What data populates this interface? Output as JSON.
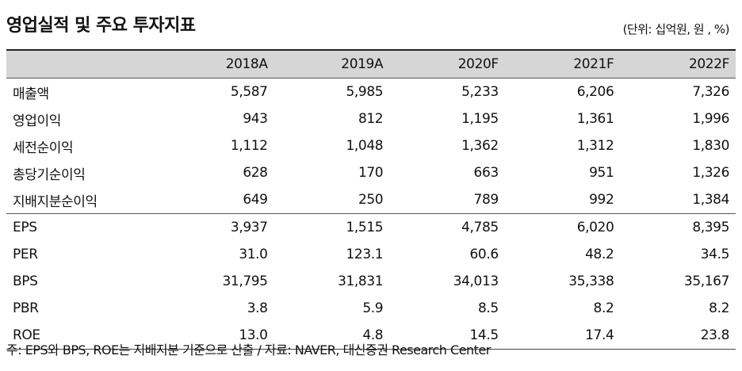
{
  "title": "영업실적 및 주요 투자지표",
  "unit": "(단위: 십억원, 원 , %)",
  "columns": [
    "",
    "2018A",
    "2019A",
    "2020F",
    "2021F",
    "2022F"
  ],
  "rows": [
    {
      "label": "매출액",
      "values": [
        "5,587",
        "5,985",
        "5,233",
        "6,206",
        "7,326"
      ]
    },
    {
      "label": "영업이익",
      "values": [
        "943",
        "812",
        "1,195",
        "1,361",
        "1,996"
      ]
    },
    {
      "label": "세전순이익",
      "values": [
        "1,112",
        "1,048",
        "1,362",
        "1,312",
        "1,830"
      ]
    },
    {
      "label": "총당기순이익",
      "values": [
        "628",
        "170",
        "663",
        "951",
        "1,326"
      ]
    },
    {
      "label": "지배지분순이익",
      "values": [
        "649",
        "250",
        "789",
        "992",
        "1,384"
      ]
    },
    {
      "label": "EPS",
      "values": [
        "3,937",
        "1,515",
        "4,785",
        "6,020",
        "8,395"
      ]
    },
    {
      "label": "PER",
      "values": [
        "31.0",
        "123.1",
        "60.6",
        "48.2",
        "34.5"
      ]
    },
    {
      "label": "BPS",
      "values": [
        "31,795",
        "31,831",
        "34,013",
        "35,338",
        "35,167"
      ]
    },
    {
      "label": "PBR",
      "values": [
        "3.8",
        "5.9",
        "8.5",
        "8.2",
        "8.2"
      ]
    },
    {
      "label": "ROE",
      "values": [
        "13.0",
        "4.8",
        "14.5",
        "17.4",
        "23.8"
      ]
    }
  ],
  "note": "주: EPS와 BPS, ROE는 지배지분 기준으로 산출 / 자료: NAVER, 대신증권 Research Center"
}
